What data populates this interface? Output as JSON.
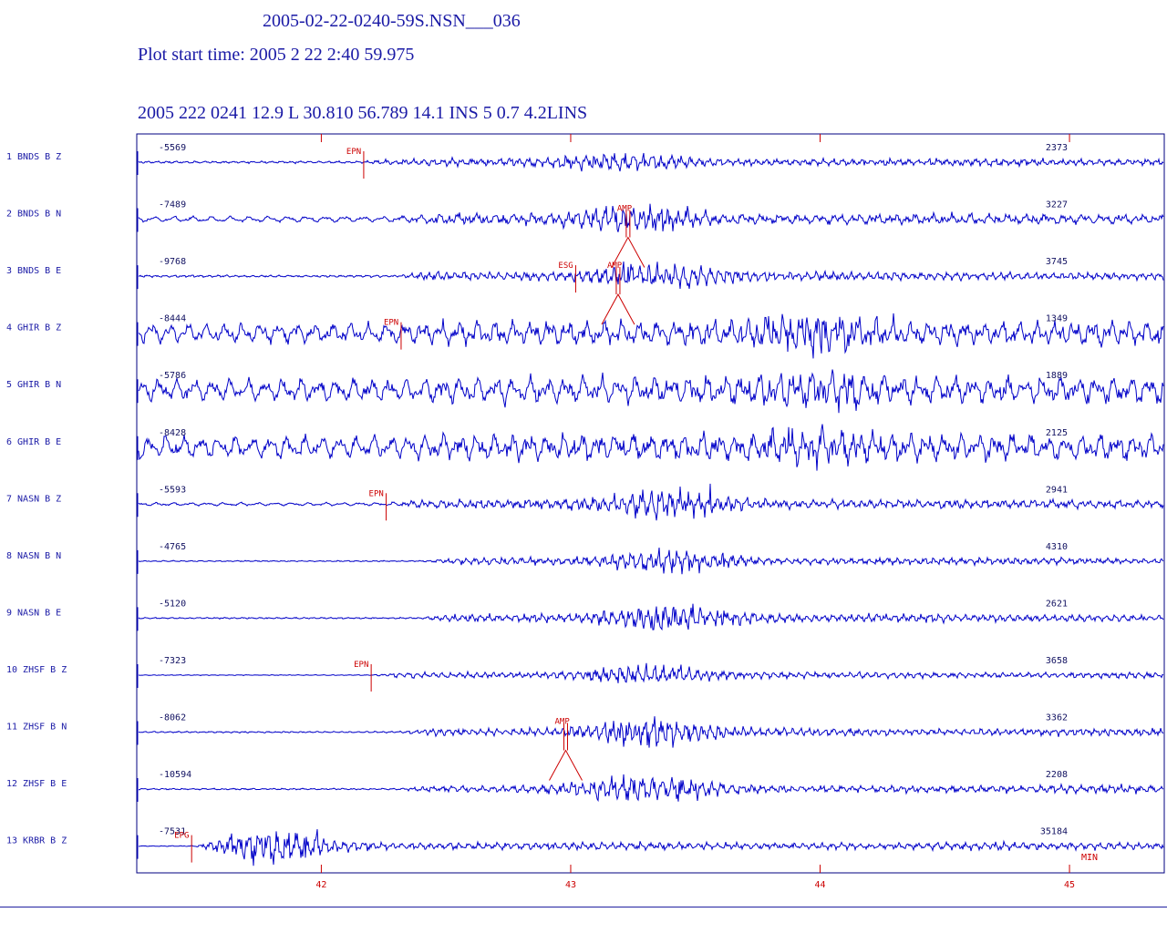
{
  "header": {
    "filename": "2005-02-22-0240-59S.NSN___036",
    "start_time": "Plot start time: 2005   2 22    2:40  59.975",
    "event_line": "2005  222 0241 12.9 L  30.810  56.789 14.1  INS  5 0.7 4.2LINS"
  },
  "colors": {
    "trace": "#0000c8",
    "text": "#1a1aa6",
    "pick": "#cc0000",
    "frame": "#000080"
  },
  "chart_data": {
    "type": "line",
    "x_axis": {
      "unit": "minutes",
      "range": [
        41.26,
        45.38
      ],
      "ticks": [
        42,
        43,
        44,
        45
      ]
    },
    "end_label": "MIN",
    "traces": [
      {
        "label": "1 BNDS  B  Z",
        "min": "-5569",
        "max": "2373",
        "onset": 42.17,
        "peak": 43.2,
        "amp": 8,
        "noise": 1.2,
        "lowfreq": 0,
        "picks": [
          {
            "label": "EPN",
            "x": 42.17,
            "type": "phase"
          }
        ]
      },
      {
        "label": "2 BNDS  B  N",
        "min": "-7489",
        "max": "3227",
        "onset": 42.3,
        "peak": 43.25,
        "amp": 11,
        "noise": 1.5,
        "lowfreq": 2,
        "picks": [
          {
            "label": "AMP",
            "x": 43.23,
            "type": "amp"
          }
        ]
      },
      {
        "label": "3 BNDS  B  E",
        "min": "-9768",
        "max": "3745",
        "onset": 42.3,
        "peak": 43.35,
        "amp": 11,
        "noise": 1.2,
        "lowfreq": 0,
        "picks": [
          {
            "label": "ESG",
            "x": 43.02,
            "type": "phase"
          },
          {
            "label": "AMP",
            "x": 43.19,
            "type": "amp"
          }
        ]
      },
      {
        "label": "4 GHIR  B  Z",
        "min": "-8444",
        "max": "1349",
        "onset": 42.3,
        "peak": 44.0,
        "amp": 12,
        "noise": 6,
        "lowfreq": 6,
        "picks": [
          {
            "label": "EPN",
            "x": 42.32,
            "type": "phase"
          }
        ]
      },
      {
        "label": "5 GHIR  B  N",
        "min": "-5786",
        "max": "1889",
        "onset": 42.3,
        "peak": 44.0,
        "amp": 11,
        "noise": 7,
        "lowfreq": 7,
        "picks": []
      },
      {
        "label": "6 GHIR  B  E",
        "min": "-8428",
        "max": "2125",
        "onset": 42.3,
        "peak": 44.0,
        "amp": 11,
        "noise": 7,
        "lowfreq": 7,
        "picks": []
      },
      {
        "label": "7 NASN  B  Z",
        "min": "-5593",
        "max": "2941",
        "onset": 42.26,
        "peak": 43.4,
        "amp": 13,
        "noise": 1,
        "lowfreq": 1,
        "picks": [
          {
            "label": "EPN",
            "x": 42.26,
            "type": "phase"
          }
        ]
      },
      {
        "label": "8 NASN  B  N",
        "min": "-4765",
        "max": "4310",
        "onset": 42.4,
        "peak": 43.4,
        "amp": 10,
        "noise": 0.6,
        "lowfreq": 0,
        "picks": []
      },
      {
        "label": "9 NASN  B  E",
        "min": "-5120",
        "max": "2621",
        "onset": 42.4,
        "peak": 43.4,
        "amp": 13,
        "noise": 0.8,
        "lowfreq": 0,
        "picks": []
      },
      {
        "label": "10 ZHSF  B  Z",
        "min": "-7323",
        "max": "3658",
        "onset": 42.2,
        "peak": 43.3,
        "amp": 9,
        "noise": 0.4,
        "lowfreq": 0,
        "picks": [
          {
            "label": "EPN",
            "x": 42.2,
            "type": "phase"
          }
        ]
      },
      {
        "label": "11 ZHSF  B  N",
        "min": "-8062",
        "max": "3362",
        "onset": 42.3,
        "peak": 43.3,
        "amp": 12,
        "noise": 0.8,
        "lowfreq": 0,
        "picks": [
          {
            "label": "AMP",
            "x": 42.98,
            "type": "amp"
          }
        ]
      },
      {
        "label": "12 ZHSF  B  E",
        "min": "-10594",
        "max": "2208",
        "onset": 42.3,
        "peak": 43.3,
        "amp": 13,
        "noise": 0.8,
        "lowfreq": 0,
        "picks": []
      },
      {
        "label": "13 KRBR  B  Z",
        "min": "-7531",
        "max": "35184",
        "onset": 41.48,
        "peak": 41.8,
        "amp": 15,
        "noise": 0.4,
        "lowfreq": 0,
        "picks": [
          {
            "label": "EPG",
            "x": 41.48,
            "type": "phase"
          }
        ]
      }
    ]
  }
}
